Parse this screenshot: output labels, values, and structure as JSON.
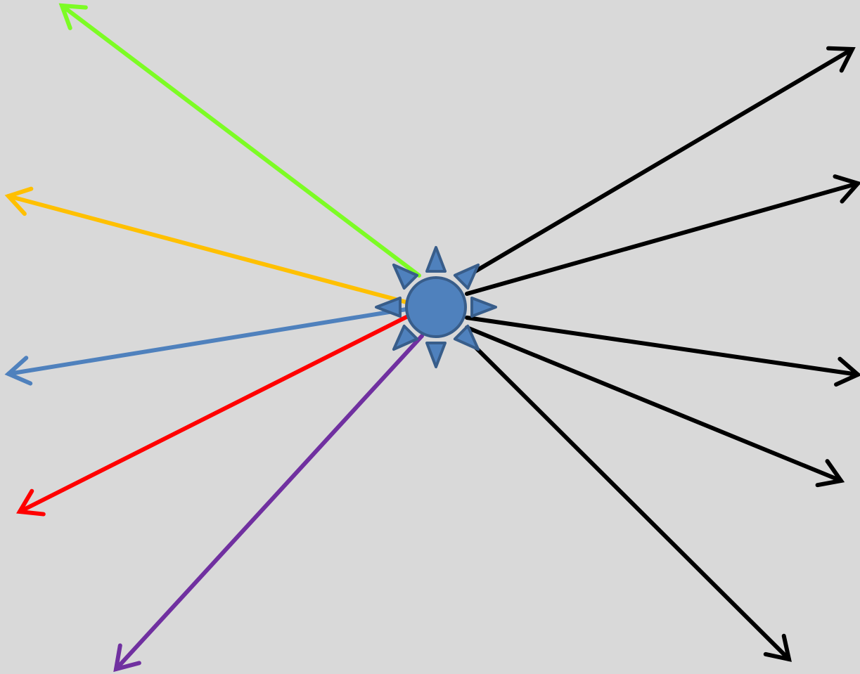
{
  "diagram": {
    "background_color": "#d9d9d9",
    "center_node": {
      "icon": "sun-icon",
      "fill_color": "#4f81bd",
      "stroke_color": "#385d8a"
    },
    "arrows": [
      {
        "name": "arrow-green",
        "color": "#7cfc24"
      },
      {
        "name": "arrow-orange",
        "color": "#ffc000"
      },
      {
        "name": "arrow-blue",
        "color": "#4f81bd"
      },
      {
        "name": "arrow-red",
        "color": "#ff0000"
      },
      {
        "name": "arrow-purple",
        "color": "#7030a0"
      },
      {
        "name": "arrow-black-1",
        "color": "#000000"
      },
      {
        "name": "arrow-black-2",
        "color": "#000000"
      },
      {
        "name": "arrow-black-3",
        "color": "#000000"
      },
      {
        "name": "arrow-black-4",
        "color": "#000000"
      },
      {
        "name": "arrow-black-5",
        "color": "#000000"
      }
    ]
  }
}
